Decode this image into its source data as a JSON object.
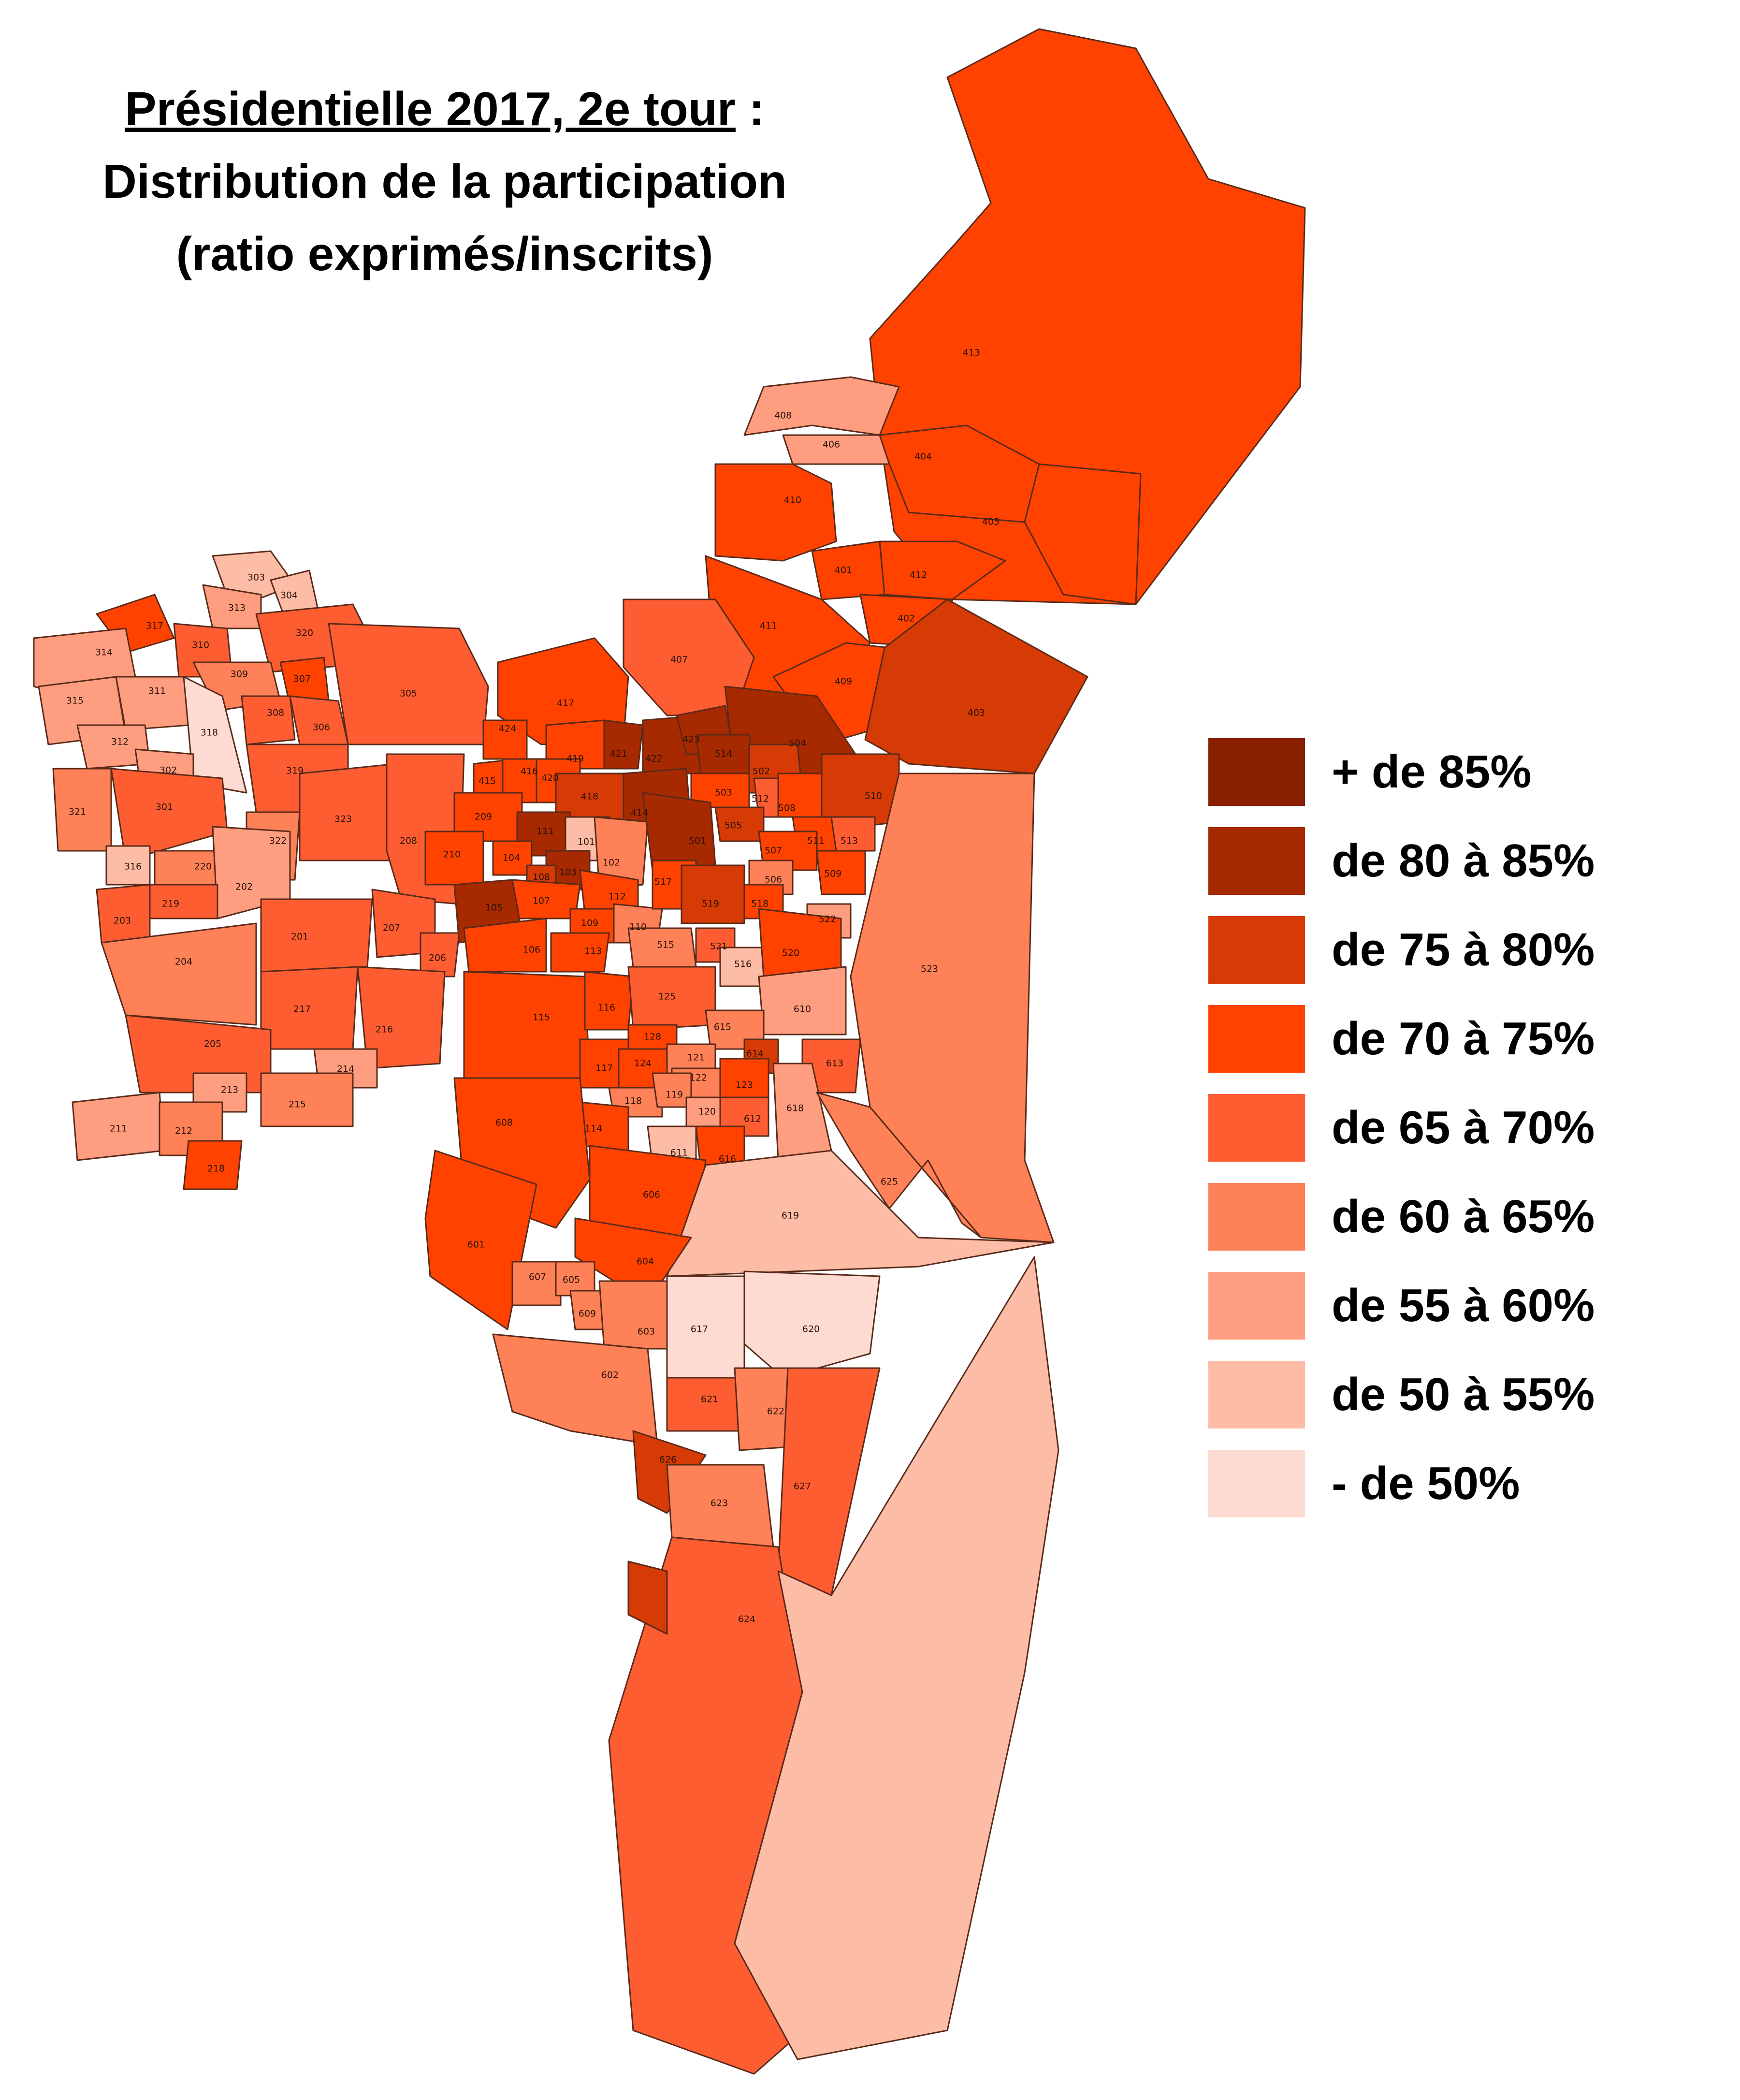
{
  "title": {
    "line1_underlined": "Présidentielle 2017, 2e tour",
    "line1_suffix": " :",
    "line2": "Distribution de la participation",
    "line3": "(ratio exprimés/inscrits)"
  },
  "legend": [
    {
      "label": "+ de 85%",
      "color": "#892000"
    },
    {
      "label": "de 80 à 85%",
      "color": "#a72900"
    },
    {
      "label": "de 75 à 80%",
      "color": "#d63a05"
    },
    {
      "label": "de 70 à 75%",
      "color": "#ff4200"
    },
    {
      "label": "de 65 à 70%",
      "color": "#fe5d32"
    },
    {
      "label": "de 60 à 65%",
      "color": "#fe8157"
    },
    {
      "label": "de 55 à 60%",
      "color": "#fe9d7f"
    },
    {
      "label": "de 50 à 55%",
      "color": "#fdbca5"
    },
    {
      "label": "- de 50%",
      "color": "#fddbd2"
    }
  ],
  "zones": [
    {
      "id": "413",
      "cls": "de 70 à 75%"
    },
    {
      "id": "408",
      "cls": "de 55 à 60%"
    },
    {
      "id": "406",
      "cls": "de 55 à 60%"
    },
    {
      "id": "404",
      "cls": "de 70 à 75%"
    },
    {
      "id": "405",
      "cls": "de 70 à 75%"
    },
    {
      "id": "410",
      "cls": "de 70 à 75%"
    },
    {
      "id": "401",
      "cls": "de 70 à 75%"
    },
    {
      "id": "412",
      "cls": "de 70 à 75%"
    },
    {
      "id": "402",
      "cls": "de 70 à 75%"
    },
    {
      "id": "411",
      "cls": "de 70 à 75%"
    },
    {
      "id": "409",
      "cls": "de 70 à 75%"
    },
    {
      "id": "403",
      "cls": "de 75 à 80%"
    },
    {
      "id": "407",
      "cls": "de 65 à 70%"
    },
    {
      "id": "417",
      "cls": "de 70 à 75%"
    },
    {
      "id": "303",
      "cls": "de 50 à 55%"
    },
    {
      "id": "304",
      "cls": "de 50 à 55%"
    },
    {
      "id": "313",
      "cls": "de 55 à 60%"
    },
    {
      "id": "317",
      "cls": "de 70 à 75%"
    },
    {
      "id": "310",
      "cls": "de 65 à 70%"
    },
    {
      "id": "320",
      "cls": "de 65 à 70%"
    },
    {
      "id": "314",
      "cls": "de 55 à 60%"
    },
    {
      "id": "309",
      "cls": "de 60 à 65%"
    },
    {
      "id": "307",
      "cls": "de 70 à 75%"
    },
    {
      "id": "305",
      "cls": "de 65 à 70%"
    },
    {
      "id": "311",
      "cls": "de 55 à 60%"
    },
    {
      "id": "308",
      "cls": "de 65 à 70%"
    },
    {
      "id": "306",
      "cls": "de 65 à 70%"
    },
    {
      "id": "315",
      "cls": "de 55 à 60%"
    },
    {
      "id": "318",
      "cls": "- de 50%"
    },
    {
      "id": "312",
      "cls": "de 55 à 60%"
    },
    {
      "id": "302",
      "cls": "de 55 à 60%"
    },
    {
      "id": "319",
      "cls": "de 65 à 70%"
    },
    {
      "id": "321",
      "cls": "de 60 à 65%"
    },
    {
      "id": "301",
      "cls": "de 65 à 70%"
    },
    {
      "id": "323",
      "cls": "de 65 à 70%"
    },
    {
      "id": "322",
      "cls": "de 60 à 65%"
    },
    {
      "id": "208",
      "cls": "de 65 à 70%"
    },
    {
      "id": "316",
      "cls": "de 50 à 55%"
    },
    {
      "id": "220",
      "cls": "de 60 à 65%"
    },
    {
      "id": "202",
      "cls": "de 55 à 60%"
    },
    {
      "id": "219",
      "cls": "de 65 à 70%"
    },
    {
      "id": "203",
      "cls": "de 65 à 70%"
    },
    {
      "id": "201",
      "cls": "de 65 à 70%"
    },
    {
      "id": "207",
      "cls": "de 65 à 70%"
    },
    {
      "id": "206",
      "cls": "de 65 à 70%"
    },
    {
      "id": "204",
      "cls": "de 60 à 65%"
    },
    {
      "id": "217",
      "cls": "de 65 à 70%"
    },
    {
      "id": "216",
      "cls": "de 65 à 70%"
    },
    {
      "id": "205",
      "cls": "de 65 à 70%"
    },
    {
      "id": "214",
      "cls": "de 55 à 60%"
    },
    {
      "id": "213",
      "cls": "de 55 à 60%"
    },
    {
      "id": "215",
      "cls": "de 60 à 65%"
    },
    {
      "id": "211",
      "cls": "de 55 à 60%"
    },
    {
      "id": "212",
      "cls": "de 60 à 65%"
    },
    {
      "id": "218",
      "cls": "de 70 à 75%"
    },
    {
      "id": "424",
      "cls": "de 70 à 75%"
    },
    {
      "id": "419",
      "cls": "de 70 à 75%"
    },
    {
      "id": "421",
      "cls": "de 80 à 85%"
    },
    {
      "id": "422",
      "cls": "de 80 à 85%"
    },
    {
      "id": "423",
      "cls": "de 80 à 85%"
    },
    {
      "id": "415",
      "cls": "de 70 à 75%"
    },
    {
      "id": "416",
      "cls": "de 70 à 75%"
    },
    {
      "id": "420",
      "cls": "de 70 à 75%"
    },
    {
      "id": "418",
      "cls": "de 75 à 80%"
    },
    {
      "id": "414",
      "cls": "de 80 à 85%"
    },
    {
      "id": "209",
      "cls": "de 70 à 75%"
    },
    {
      "id": "111",
      "cls": "de 80 à 85%"
    },
    {
      "id": "210",
      "cls": "de 70 à 75%"
    },
    {
      "id": "104",
      "cls": "de 70 à 75%"
    },
    {
      "id": "101",
      "cls": "de 50 à 55%"
    },
    {
      "id": "102",
      "cls": "de 60 à 65%"
    },
    {
      "id": "103",
      "cls": "de 80 à 85%"
    },
    {
      "id": "108",
      "cls": "de 75 à 80%"
    },
    {
      "id": "107",
      "cls": "de 70 à 75%"
    },
    {
      "id": "105",
      "cls": "de 80 à 85%"
    },
    {
      "id": "112",
      "cls": "de 70 à 75%"
    },
    {
      "id": "109",
      "cls": "de 70 à 75%"
    },
    {
      "id": "110",
      "cls": "de 60 à 65%"
    },
    {
      "id": "106",
      "cls": "de 70 à 75%"
    },
    {
      "id": "113",
      "cls": "de 70 à 75%"
    },
    {
      "id": "504",
      "cls": "de 80 à 85%"
    },
    {
      "id": "514",
      "cls": "de 80 à 85%"
    },
    {
      "id": "502",
      "cls": "de 75 à 80%"
    },
    {
      "id": "503",
      "cls": "de 70 à 75%"
    },
    {
      "id": "512",
      "cls": "de 65 à 70%"
    },
    {
      "id": "508",
      "cls": "de 70 à 75%"
    },
    {
      "id": "510",
      "cls": "de 75 à 80%"
    },
    {
      "id": "505",
      "cls": "de 75 à 80%"
    },
    {
      "id": "501",
      "cls": "de 80 à 85%"
    },
    {
      "id": "511",
      "cls": "de 70 à 75%"
    },
    {
      "id": "513",
      "cls": "de 65 à 70%"
    },
    {
      "id": "507",
      "cls": "de 70 à 75%"
    },
    {
      "id": "509",
      "cls": "de 70 à 75%"
    },
    {
      "id": "506",
      "cls": "de 60 à 65%"
    },
    {
      "id": "517",
      "cls": "de 70 à 75%"
    },
    {
      "id": "519",
      "cls": "de 75 à 80%"
    },
    {
      "id": "518",
      "cls": "de 70 à 75%"
    },
    {
      "id": "522",
      "cls": "de 55 à 60%"
    },
    {
      "id": "515",
      "cls": "de 60 à 65%"
    },
    {
      "id": "521",
      "cls": "de 65 à 70%"
    },
    {
      "id": "516",
      "cls": "de 50 à 55%"
    },
    {
      "id": "520",
      "cls": "de 70 à 75%"
    },
    {
      "id": "523",
      "cls": "de 60 à 65%"
    },
    {
      "id": "115",
      "cls": "de 70 à 75%"
    },
    {
      "id": "116",
      "cls": "de 70 à 75%"
    },
    {
      "id": "125",
      "cls": "de 65 à 70%"
    },
    {
      "id": "610",
      "cls": "de 55 à 60%"
    },
    {
      "id": "615",
      "cls": "de 60 à 65%"
    },
    {
      "id": "128",
      "cls": "de 70 à 75%"
    },
    {
      "id": "614",
      "cls": "de 75 à 80%"
    },
    {
      "id": "117",
      "cls": "de 70 à 75%"
    },
    {
      "id": "124",
      "cls": "de 70 à 75%"
    },
    {
      "id": "121",
      "cls": "de 60 à 65%"
    },
    {
      "id": "122",
      "cls": "de 60 à 65%"
    },
    {
      "id": "123",
      "cls": "de 70 à 75%"
    },
    {
      "id": "613",
      "cls": "de 65 à 70%"
    },
    {
      "id": "118",
      "cls": "de 60 à 65%"
    },
    {
      "id": "119",
      "cls": "de 60 à 65%"
    },
    {
      "id": "120",
      "cls": "de 55 à 60%"
    },
    {
      "id": "612",
      "cls": "de 65 à 70%"
    },
    {
      "id": "618",
      "cls": "de 55 à 60%"
    },
    {
      "id": "114",
      "cls": "de 70 à 75%"
    },
    {
      "id": "611",
      "cls": "de 50 à 55%"
    },
    {
      "id": "616",
      "cls": "de 70 à 75%"
    },
    {
      "id": "608",
      "cls": "de 70 à 75%"
    },
    {
      "id": "606",
      "cls": "de 70 à 75%"
    },
    {
      "id": "625",
      "cls": "de 60 à 65%"
    },
    {
      "id": "619",
      "cls": "de 50 à 55%"
    },
    {
      "id": "601",
      "cls": "de 70 à 75%"
    },
    {
      "id": "604",
      "cls": "de 70 à 75%"
    },
    {
      "id": "607",
      "cls": "de 60 à 65%"
    },
    {
      "id": "605",
      "cls": "de 60 à 65%"
    },
    {
      "id": "609",
      "cls": "de 60 à 65%"
    },
    {
      "id": "603",
      "cls": "de 60 à 65%"
    },
    {
      "id": "617",
      "cls": "- de 50%"
    },
    {
      "id": "620",
      "cls": "- de 50%"
    },
    {
      "id": "602",
      "cls": "de 60 à 65%"
    },
    {
      "id": "621",
      "cls": "de 65 à 70%"
    },
    {
      "id": "622",
      "cls": "de 60 à 65%"
    },
    {
      "id": "626",
      "cls": "de 75 à 80%"
    },
    {
      "id": "627",
      "cls": "de 65 à 70%"
    },
    {
      "id": "623",
      "cls": "de 60 à 65%"
    },
    {
      "id": "624",
      "cls": "de 65 à 70%"
    },
    {
      "id": "624b",
      "cls": "de 50 à 55%"
    },
    {
      "id": "626b",
      "cls": "de 75 à 80%"
    }
  ]
}
